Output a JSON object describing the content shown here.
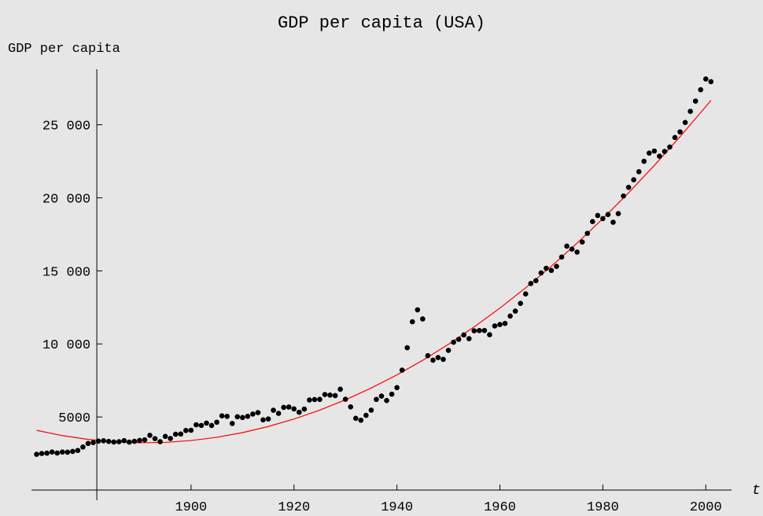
{
  "chart_data": {
    "type": "scatter",
    "title": "GDP per capita (USA)",
    "y_label": "GDP per capita",
    "x_label": "t",
    "color": "#000000",
    "x": [
      1870,
      1871,
      1872,
      1873,
      1874,
      1875,
      1876,
      1877,
      1878,
      1879,
      1880,
      1881,
      1882,
      1883,
      1884,
      1885,
      1886,
      1887,
      1888,
      1889,
      1890,
      1891,
      1892,
      1893,
      1894,
      1895,
      1896,
      1897,
      1898,
      1899,
      1900,
      1901,
      1902,
      1903,
      1904,
      1905,
      1906,
      1907,
      1908,
      1909,
      1910,
      1911,
      1912,
      1913,
      1914,
      1915,
      1916,
      1917,
      1918,
      1919,
      1920,
      1921,
      1922,
      1923,
      1924,
      1925,
      1926,
      1927,
      1928,
      1929,
      1930,
      1931,
      1932,
      1933,
      1934,
      1935,
      1936,
      1937,
      1938,
      1939,
      1940,
      1941,
      1942,
      1943,
      1944,
      1945,
      1946,
      1947,
      1948,
      1949,
      1950,
      1951,
      1952,
      1953,
      1954,
      1955,
      1956,
      1957,
      1958,
      1959,
      1960,
      1961,
      1962,
      1963,
      1964,
      1965,
      1966,
      1967,
      1968,
      1969,
      1970,
      1971,
      1972,
      1973,
      1974,
      1975,
      1976,
      1977,
      1978,
      1979,
      1980,
      1981,
      1982,
      1983,
      1984,
      1985,
      1986,
      1987,
      1988,
      1989,
      1990,
      1991,
      1992,
      1993,
      1994,
      1995,
      1996,
      1997,
      1998,
      1999,
      2000,
      2001
    ],
    "values": [
      2445,
      2503,
      2524,
      2599,
      2532,
      2599,
      2591,
      2640,
      2711,
      2947,
      3184,
      3247,
      3349,
      3372,
      3328,
      3286,
      3305,
      3379,
      3278,
      3334,
      3392,
      3434,
      3745,
      3519,
      3309,
      3670,
      3533,
      3818,
      3836,
      4077,
      4091,
      4464,
      4421,
      4582,
      4418,
      4642,
      5077,
      5041,
      4555,
      5017,
      4964,
      5046,
      5201,
      5301,
      4799,
      4864,
      5459,
      5248,
      5659,
      5680,
      5552,
      5323,
      5540,
      6164,
      6195,
      6205,
      6539,
      6497,
      6461,
      6899,
      6213,
      5691,
      4908,
      4777,
      5114,
      5467,
      6204,
      6430,
      6126,
      6561,
      7010,
      8206,
      9741,
      11518,
      12333,
      11709,
      9197,
      8886,
      9065,
      8944,
      9561,
      10116,
      10316,
      10613,
      10359,
      10897,
      10914,
      10920,
      10631,
      11230,
      11328,
      11402,
      11905,
      12242,
      12773,
      13419,
      14134,
      14330,
      14863,
      15179,
      15030,
      15304,
      15944,
      16689,
      16491,
      16284,
      16975,
      17567,
      18373,
      18789,
      18577,
      18856,
      18325,
      18920,
      20123,
      20717,
      21236,
      21788,
      22499,
      23059,
      23201,
      22849,
      23175,
      23477,
      24128,
      24514,
      25156,
      25919,
      26619,
      27395,
      28129,
      27948
    ],
    "fit": {
      "color": "#ff0000",
      "x": [
        1870,
        1875,
        1880,
        1885,
        1890,
        1895,
        1900,
        1905,
        1910,
        1915,
        1920,
        1925,
        1930,
        1935,
        1940,
        1945,
        1950,
        1955,
        1960,
        1965,
        1970,
        1975,
        1980,
        1985,
        1990,
        1995,
        2000,
        2001
      ],
      "values": [
        4084,
        3726,
        3464,
        3300,
        3232,
        3261,
        3387,
        3610,
        3929,
        4346,
        4859,
        5469,
        6176,
        6980,
        7881,
        8878,
        9973,
        11164,
        12452,
        13837,
        15319,
        16897,
        18573,
        20345,
        22215,
        24181,
        26244,
        26670
      ]
    },
    "xlim": [
      1869,
      2005
    ],
    "ylim": [
      -700,
      28800
    ],
    "axes_origin": [
      1881.7,
      0
    ],
    "xticks": [
      1900,
      1920,
      1940,
      1960,
      1980,
      2000
    ],
    "yticks": [
      5000,
      {
        "value": 10000,
        "label": "10 000"
      },
      {
        "value": 15000,
        "label": "15 000"
      },
      {
        "value": 20000,
        "label": "20 000"
      },
      {
        "value": 25000,
        "label": "25 000"
      }
    ]
  }
}
